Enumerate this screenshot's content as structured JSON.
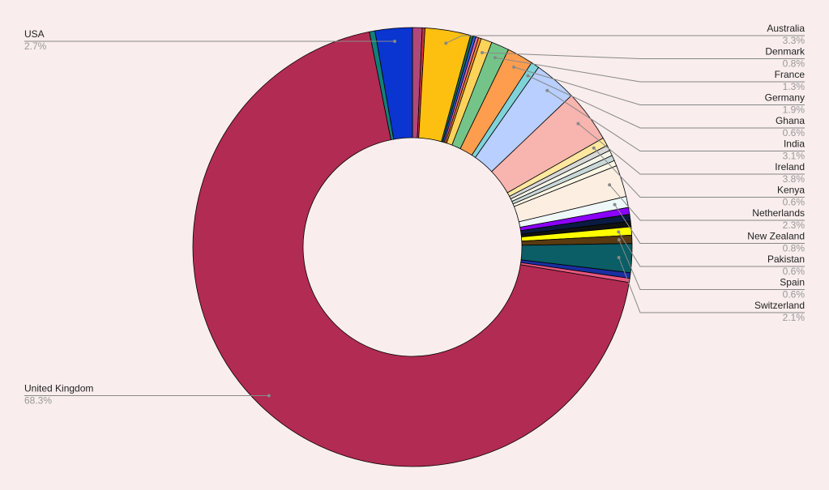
{
  "chart_data": {
    "type": "pie",
    "donut": true,
    "categories": [
      null,
      null,
      "Australia",
      null,
      null,
      null,
      null,
      "Denmark",
      "France",
      "Germany",
      "Ghana",
      "India",
      "Ireland",
      "Kenya",
      null,
      null,
      null,
      null,
      "Netherlands",
      "New Zealand",
      null,
      null,
      null,
      "Pakistan",
      "Spain",
      "Switzerland",
      null,
      null,
      "United Kingdom",
      null,
      "USA"
    ],
    "values": [
      0.7,
      0.2,
      3.3,
      0.2,
      0.2,
      0.2,
      0.2,
      0.8,
      1.3,
      1.9,
      0.6,
      3.1,
      3.8,
      0.6,
      0.4,
      0.4,
      0.4,
      0.4,
      2.3,
      0.8,
      0.5,
      0.5,
      0.4,
      0.6,
      0.6,
      2.1,
      0.4,
      0.3,
      68.3,
      0.4,
      2.7
    ],
    "value_labels": [
      null,
      null,
      "3.3%",
      null,
      null,
      null,
      null,
      "0.8%",
      "1.3%",
      "1.9%",
      "0.6%",
      "3.1%",
      "3.8%",
      "0.6%",
      null,
      null,
      null,
      null,
      "2.3%",
      "0.8%",
      null,
      null,
      null,
      "0.6%",
      "0.6%",
      "2.1%",
      null,
      null,
      "68.3%",
      null,
      "2.7%"
    ],
    "colors": [
      "#b0487a",
      "#d1323e",
      "#fdc010",
      "#1e6b4a",
      "#2a5bd7",
      "#e36ba0",
      "#f08a24",
      "#ffd25a",
      "#74c48a",
      "#ff9d4f",
      "#7fd3d8",
      "#b8cfff",
      "#f8b4ae",
      "#ffe7a0",
      "#d8d8d8",
      "#f3f3e8",
      "#c9d8d8",
      "#fff7e6",
      "#fdeee2",
      "#eef8f8",
      "#8b00ff",
      "#0a1a40",
      "#111111",
      "#ffff00",
      "#5a3a10",
      "#0b5e66",
      "#1a2fa0",
      "#e8577f",
      "#b22b52",
      "#12807a",
      "#0a35d0"
    ]
  }
}
